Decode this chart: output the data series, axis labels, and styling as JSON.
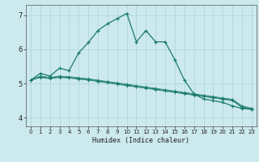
{
  "title": "",
  "xlabel": "Humidex (Indice chaleur)",
  "background_color": "#cce9ee",
  "grid_color": "#aad4da",
  "line_color": "#1a7a6e",
  "xlim": [
    -0.5,
    23.5
  ],
  "ylim": [
    3.75,
    7.3
  ],
  "yticks": [
    4,
    5,
    6,
    7
  ],
  "xticks": [
    0,
    1,
    2,
    3,
    4,
    5,
    6,
    7,
    8,
    9,
    10,
    11,
    12,
    13,
    14,
    15,
    16,
    17,
    18,
    19,
    20,
    21,
    22,
    23
  ],
  "series": [
    {
      "x": [
        0,
        1,
        2,
        3,
        4,
        5,
        6,
        7,
        8,
        9,
        10,
        11,
        12,
        13,
        14,
        15,
        16,
        17,
        18,
        19,
        20,
        21,
        22,
        23
      ],
      "y": [
        5.1,
        5.3,
        5.22,
        5.45,
        5.38,
        5.9,
        6.2,
        6.55,
        6.75,
        6.9,
        7.05,
        6.22,
        6.55,
        6.22,
        6.22,
        5.7,
        5.1,
        4.7,
        4.55,
        4.5,
        4.45,
        4.35,
        4.27,
        4.25
      ]
    },
    {
      "x": [
        0,
        1,
        2,
        3,
        4,
        5,
        6,
        7,
        8,
        9,
        10,
        11,
        12,
        13,
        14,
        15,
        16,
        17,
        18,
        19,
        20,
        21,
        22,
        23
      ],
      "y": [
        5.1,
        5.22,
        5.18,
        5.22,
        5.2,
        5.17,
        5.14,
        5.1,
        5.06,
        5.02,
        4.98,
        4.94,
        4.9,
        4.86,
        4.82,
        4.78,
        4.74,
        4.7,
        4.66,
        4.62,
        4.58,
        4.54,
        4.35,
        4.28
      ]
    },
    {
      "x": [
        0,
        1,
        2,
        3,
        4,
        5,
        6,
        7,
        8,
        9,
        10,
        11,
        12,
        13,
        14,
        15,
        16,
        17,
        18,
        19,
        20,
        21,
        22,
        23
      ],
      "y": [
        5.1,
        5.2,
        5.16,
        5.2,
        5.18,
        5.15,
        5.12,
        5.08,
        5.04,
        5.0,
        4.96,
        4.92,
        4.88,
        4.84,
        4.8,
        4.76,
        4.72,
        4.68,
        4.64,
        4.6,
        4.56,
        4.52,
        4.32,
        4.26
      ]
    },
    {
      "x": [
        0,
        1,
        2,
        3,
        4,
        5,
        6,
        7,
        8,
        9,
        10,
        11,
        12,
        13,
        14,
        15,
        16,
        17,
        18,
        19,
        20,
        21,
        22,
        23
      ],
      "y": [
        5.1,
        5.18,
        5.14,
        5.18,
        5.16,
        5.13,
        5.1,
        5.06,
        5.02,
        4.98,
        4.94,
        4.9,
        4.86,
        4.82,
        4.78,
        4.74,
        4.7,
        4.66,
        4.62,
        4.58,
        4.54,
        4.5,
        4.3,
        4.24
      ]
    }
  ]
}
